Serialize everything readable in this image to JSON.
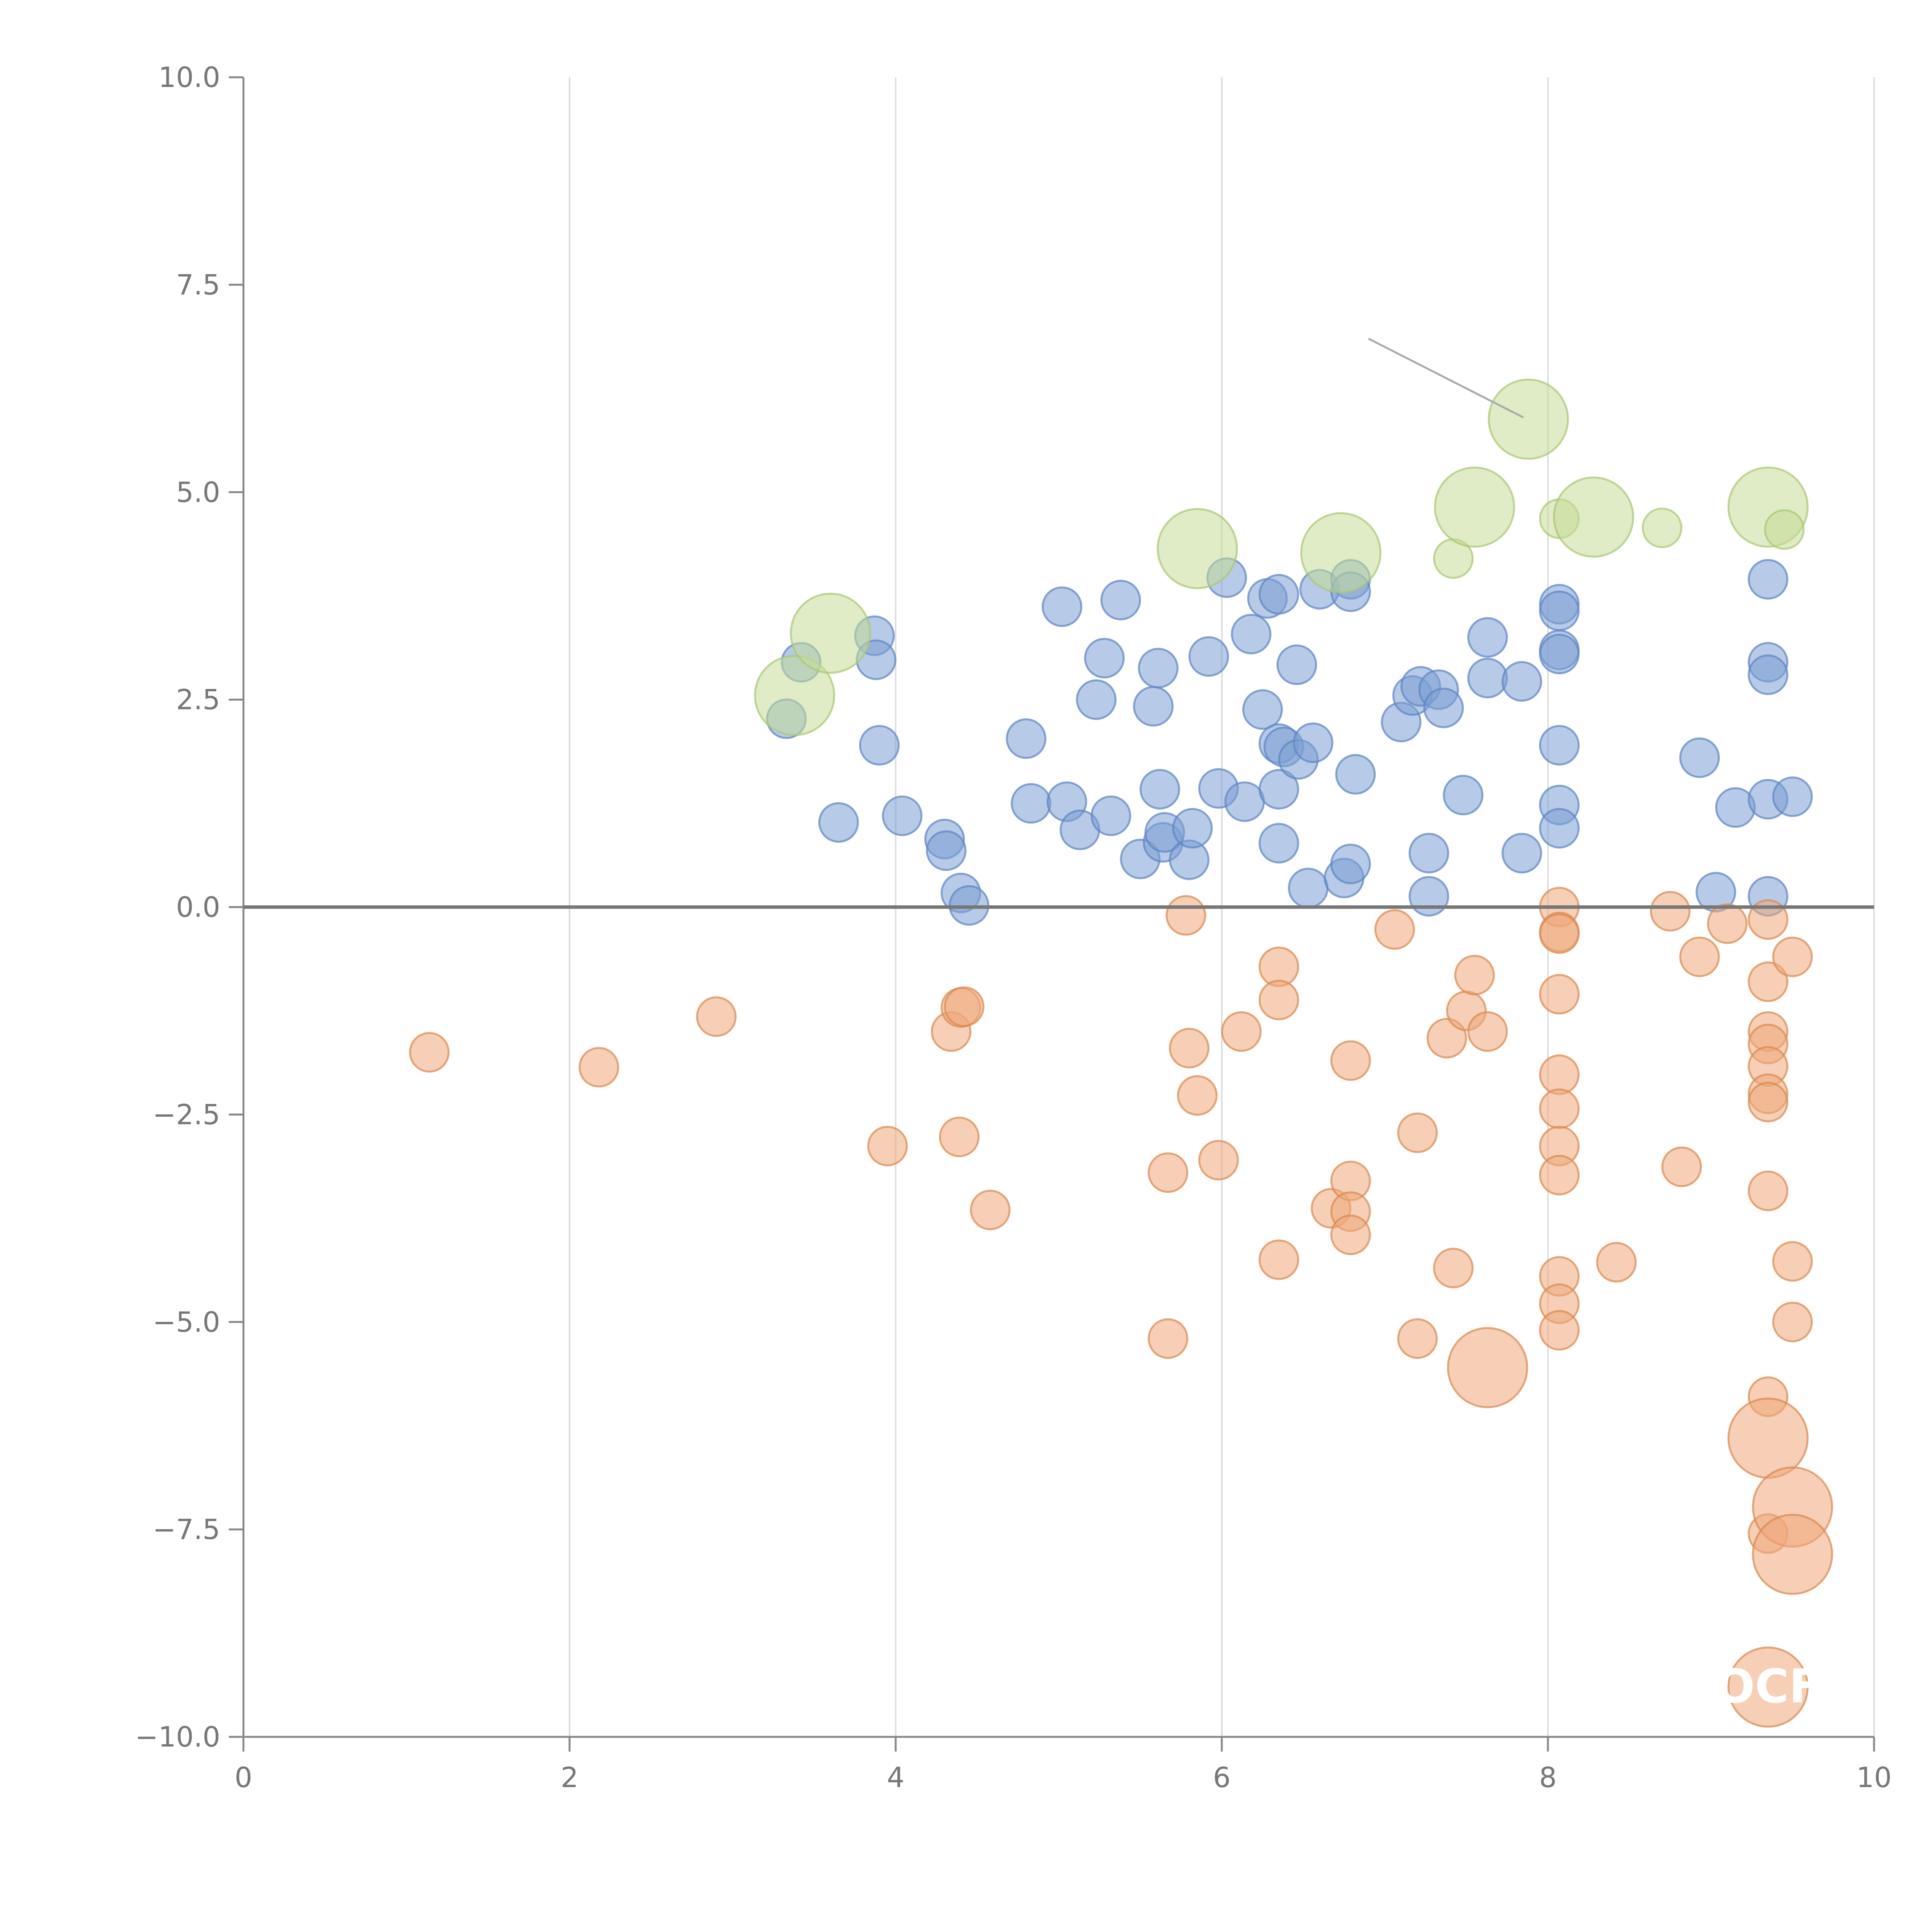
{
  "chart_data": {
    "type": "scatter",
    "title": "",
    "xlabel": "",
    "ylabel": "",
    "xlim": [
      0,
      10
    ],
    "ylim": [
      -10,
      10
    ],
    "x_ticks": [
      0,
      2,
      4,
      6,
      8,
      10
    ],
    "x_tick_labels": [
      "0",
      "2",
      "4",
      "6",
      "8",
      "10"
    ],
    "y_ticks": [
      -10,
      -7.5,
      -5,
      -2.5,
      0,
      2.5,
      5,
      7.5,
      10
    ],
    "y_tick_labels": [
      "−10.0",
      "−7.5",
      "−5.0",
      "−2.5",
      "0.0",
      "2.5",
      "5.0",
      "7.5",
      "10.0"
    ],
    "grid": "vertical",
    "zero_line": 0,
    "legend": "none",
    "annotations": [
      {
        "text": "OCF",
        "x": 9.35,
        "y": -9.4
      }
    ],
    "leader_lines": [
      {
        "from": [
          6.9,
          6.85
        ],
        "to": [
          7.85,
          5.9
        ],
        "color": "#aaaaaa"
      }
    ],
    "series": [
      {
        "name": "positive",
        "color": "#7b9fd4",
        "stroke": "#5b83c2",
        "points": [
          [
            3.33,
            2.27,
            1
          ],
          [
            3.42,
            2.95,
            1
          ],
          [
            3.65,
            1.02,
            1
          ],
          [
            3.87,
            3.27,
            1
          ],
          [
            3.88,
            2.98,
            1
          ],
          [
            3.9,
            1.95,
            1
          ],
          [
            4.04,
            1.1,
            1
          ],
          [
            4.3,
            0.82,
            1
          ],
          [
            4.31,
            0.68,
            1
          ],
          [
            4.4,
            0.17,
            1
          ],
          [
            4.45,
            0.02,
            1
          ],
          [
            4.8,
            2.03,
            1
          ],
          [
            4.83,
            1.25,
            1
          ],
          [
            5.02,
            3.62,
            1
          ],
          [
            5.05,
            1.27,
            1
          ],
          [
            5.13,
            0.93,
            1
          ],
          [
            5.23,
            2.5,
            1
          ],
          [
            5.28,
            3.0,
            1
          ],
          [
            5.32,
            1.1,
            1
          ],
          [
            5.38,
            3.7,
            1
          ],
          [
            5.5,
            0.58,
            1
          ],
          [
            5.58,
            2.42,
            1
          ],
          [
            5.61,
            2.88,
            1
          ],
          [
            5.62,
            1.42,
            1
          ],
          [
            5.64,
            0.78,
            1
          ],
          [
            5.65,
            0.9,
            1
          ],
          [
            5.8,
            0.57,
            1
          ],
          [
            5.82,
            0.95,
            1
          ],
          [
            5.92,
            3.02,
            1
          ],
          [
            5.98,
            1.43,
            1
          ],
          [
            6.03,
            3.97,
            1
          ],
          [
            6.14,
            1.27,
            1
          ],
          [
            6.18,
            3.29,
            1
          ],
          [
            6.25,
            2.38,
            1
          ],
          [
            6.28,
            3.72,
            1
          ],
          [
            6.35,
            3.77,
            1
          ],
          [
            6.35,
            1.97,
            1
          ],
          [
            6.35,
            1.42,
            1
          ],
          [
            6.35,
            0.77,
            1
          ],
          [
            6.38,
            1.93,
            1
          ],
          [
            6.46,
            2.92,
            1
          ],
          [
            6.47,
            1.78,
            1
          ],
          [
            6.53,
            0.23,
            1
          ],
          [
            6.56,
            1.98,
            1
          ],
          [
            6.6,
            3.83,
            1
          ],
          [
            6.75,
            0.35,
            1
          ],
          [
            6.79,
            3.95,
            1
          ],
          [
            6.79,
            3.8,
            1
          ],
          [
            6.79,
            0.52,
            1
          ],
          [
            6.82,
            1.6,
            1
          ],
          [
            7.1,
            2.23,
            1
          ],
          [
            7.17,
            2.55,
            1
          ],
          [
            7.22,
            2.66,
            1
          ],
          [
            7.27,
            0.65,
            1
          ],
          [
            7.27,
            0.13,
            1
          ],
          [
            7.33,
            2.62,
            1
          ],
          [
            7.36,
            2.4,
            1
          ],
          [
            7.48,
            1.35,
            1
          ],
          [
            7.63,
            3.25,
            1
          ],
          [
            7.63,
            2.76,
            1
          ],
          [
            7.84,
            2.72,
            1
          ],
          [
            7.84,
            0.65,
            1
          ],
          [
            8.07,
            3.65,
            1
          ],
          [
            8.07,
            3.57,
            1
          ],
          [
            8.07,
            3.1,
            1
          ],
          [
            8.07,
            3.05,
            1
          ],
          [
            8.07,
            1.95,
            1
          ],
          [
            8.07,
            1.23,
            1
          ],
          [
            8.07,
            0.95,
            1
          ],
          [
            8.93,
            1.8,
            1
          ],
          [
            9.03,
            0.18,
            1
          ],
          [
            9.15,
            1.2,
            1
          ],
          [
            9.35,
            3.95,
            1
          ],
          [
            9.35,
            2.95,
            1
          ],
          [
            9.35,
            2.8,
            1
          ],
          [
            9.35,
            1.3,
            1
          ],
          [
            9.35,
            0.13,
            1
          ],
          [
            9.5,
            1.33,
            1
          ]
        ]
      },
      {
        "name": "negative",
        "color": "#eea87a",
        "stroke": "#d9884e",
        "points": [
          [
            1.14,
            -1.75,
            1
          ],
          [
            2.18,
            -1.93,
            1
          ],
          [
            2.9,
            -1.32,
            1
          ],
          [
            3.95,
            -2.88,
            1
          ],
          [
            4.34,
            -1.5,
            1
          ],
          [
            4.39,
            -2.77,
            1
          ],
          [
            4.4,
            -1.21,
            1
          ],
          [
            4.42,
            -1.2,
            1
          ],
          [
            4.58,
            -3.65,
            1
          ],
          [
            5.67,
            -3.2,
            1
          ],
          [
            5.67,
            -5.2,
            1
          ],
          [
            5.78,
            -0.1,
            1
          ],
          [
            5.8,
            -1.7,
            1
          ],
          [
            5.85,
            -2.27,
            1
          ],
          [
            5.98,
            -3.05,
            1
          ],
          [
            6.12,
            -1.5,
            1
          ],
          [
            6.35,
            -0.72,
            1
          ],
          [
            6.35,
            -1.12,
            1
          ],
          [
            6.35,
            -4.25,
            1
          ],
          [
            6.67,
            -3.63,
            1
          ],
          [
            6.79,
            -1.85,
            1
          ],
          [
            6.79,
            -3.3,
            1
          ],
          [
            6.79,
            -3.67,
            1
          ],
          [
            6.79,
            -3.95,
            1
          ],
          [
            7.06,
            -0.27,
            1
          ],
          [
            7.2,
            -2.72,
            1
          ],
          [
            7.2,
            -5.2,
            1
          ],
          [
            7.38,
            -1.58,
            1
          ],
          [
            7.42,
            -4.35,
            1
          ],
          [
            7.5,
            -1.25,
            1
          ],
          [
            7.55,
            -0.82,
            1
          ],
          [
            7.63,
            -1.5,
            1
          ],
          [
            8.07,
            0.0,
            1
          ],
          [
            8.07,
            -0.3,
            1
          ],
          [
            8.07,
            -0.32,
            1
          ],
          [
            8.07,
            -1.05,
            1
          ],
          [
            8.07,
            -2.02,
            1
          ],
          [
            8.07,
            -2.43,
            1
          ],
          [
            8.07,
            -2.88,
            1
          ],
          [
            8.07,
            -3.23,
            1
          ],
          [
            8.07,
            -4.45,
            1
          ],
          [
            8.07,
            -4.78,
            1
          ],
          [
            8.07,
            -5.1,
            1
          ],
          [
            8.42,
            -4.28,
            1
          ],
          [
            8.75,
            -0.05,
            1
          ],
          [
            8.82,
            -3.13,
            1
          ],
          [
            8.93,
            -0.6,
            1
          ],
          [
            9.1,
            -0.2,
            1
          ],
          [
            9.35,
            -0.15,
            1
          ],
          [
            9.35,
            -0.9,
            1
          ],
          [
            9.35,
            -1.5,
            1
          ],
          [
            9.35,
            -1.65,
            1
          ],
          [
            9.35,
            -1.92,
            1
          ],
          [
            9.35,
            -2.25,
            1
          ],
          [
            9.35,
            -2.35,
            1
          ],
          [
            9.35,
            -3.42,
            1
          ],
          [
            9.35,
            -5.9,
            1
          ],
          [
            9.35,
            -7.55,
            1
          ],
          [
            9.5,
            -0.6,
            1
          ],
          [
            9.5,
            -4.27,
            1
          ],
          [
            9.5,
            -5.0,
            1
          ],
          [
            7.63,
            -5.55,
            2.05
          ],
          [
            9.35,
            -6.4,
            2.05
          ],
          [
            9.5,
            -7.23,
            2.05
          ],
          [
            9.5,
            -7.8,
            2.05
          ],
          [
            9.35,
            -9.4,
            2.05
          ]
        ]
      },
      {
        "name": "highlight",
        "color": "#c4dc96",
        "stroke": "#a8c674",
        "points": [
          [
            3.38,
            2.55,
            2.05
          ],
          [
            3.6,
            3.3,
            2.05
          ],
          [
            5.85,
            4.32,
            2.05
          ],
          [
            6.73,
            4.27,
            2.05
          ],
          [
            7.42,
            4.2,
            1
          ],
          [
            7.55,
            4.82,
            2.05
          ],
          [
            7.88,
            5.88,
            2.05
          ],
          [
            8.07,
            4.68,
            1
          ],
          [
            8.28,
            4.7,
            2.05
          ],
          [
            8.7,
            4.57,
            1
          ],
          [
            9.35,
            4.82,
            2.05
          ],
          [
            9.45,
            4.55,
            1
          ]
        ]
      }
    ]
  }
}
